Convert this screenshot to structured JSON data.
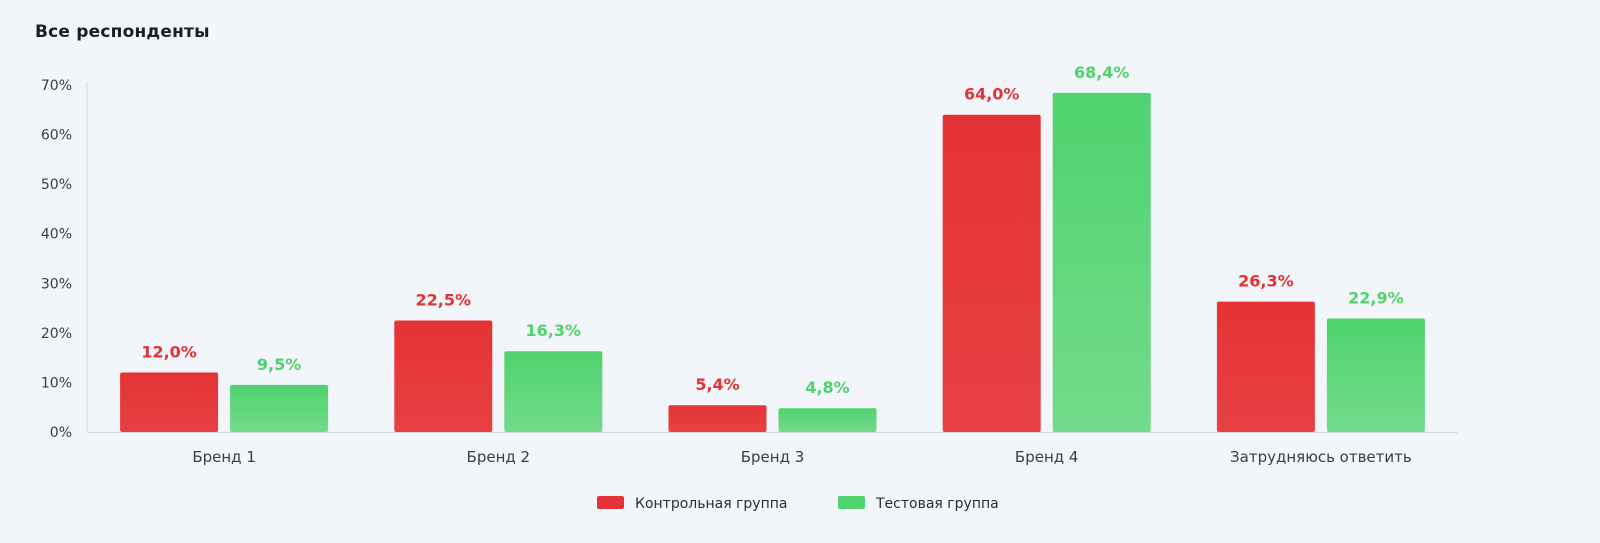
{
  "chart_data": {
    "type": "bar",
    "title": "Все респонденты",
    "categories": [
      "Бренд 1",
      "Бренд 2",
      "Бренд 3",
      "Бренд 4",
      "Затрудняюсь ответить"
    ],
    "series": [
      {
        "name": "Контрольная группа",
        "color": "#e53335",
        "values": [
          12.0,
          22.5,
          5.4,
          64.0,
          26.3
        ],
        "labels": [
          "12,0%",
          "22,5%",
          "5,4%",
          "64,0%",
          "26,3%"
        ]
      },
      {
        "name": "Тестовая группа",
        "color": "#4fd36d",
        "values": [
          9.5,
          16.3,
          4.8,
          68.4,
          22.9
        ],
        "labels": [
          "9,5%",
          "16,3%",
          "4,8%",
          "68,4%",
          "22,9%"
        ]
      }
    ],
    "ylim": [
      0,
      70
    ],
    "yticks": [
      "0%",
      "10%",
      "20%",
      "30%",
      "40%",
      "50%",
      "60%",
      "70%"
    ],
    "xlabel": "",
    "ylabel": "",
    "grid": false,
    "legend": "bottom-center"
  }
}
